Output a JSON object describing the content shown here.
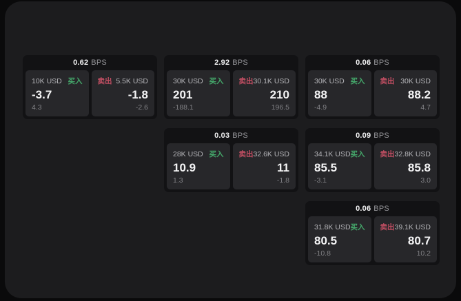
{
  "labels": {
    "buy": "买入",
    "sell": "卖出",
    "bps": "BPS"
  },
  "colors": {
    "page_bg": "#0a0a0b",
    "frame_bg": "#1c1c1e",
    "card_bg": "#121214",
    "panel_bg": "#27272a",
    "buy_accent": "#45a96b",
    "sell_accent": "#c04e62",
    "value_text": "#f4f4f5",
    "muted_text": "#818185"
  },
  "cards": [
    {
      "bps": "0.62",
      "buy": {
        "amount": "10K USD",
        "value": "-3.7",
        "sub": "4.3"
      },
      "sell": {
        "amount": "5.5K USD",
        "value": "-1.8",
        "sub": "-2.6"
      }
    },
    {
      "bps": "2.92",
      "buy": {
        "amount": "30K USD",
        "value": "201",
        "sub": "-188.1"
      },
      "sell": {
        "amount": "30.1K USD",
        "value": "210",
        "sub": "196.5"
      }
    },
    {
      "bps": "0.06",
      "buy": {
        "amount": "30K USD",
        "value": "88",
        "sub": "-4.9"
      },
      "sell": {
        "amount": "30K USD",
        "value": "88.2",
        "sub": "4.7"
      }
    },
    {
      "bps": "0.03",
      "buy": {
        "amount": "28K USD",
        "value": "10.9",
        "sub": "1.3"
      },
      "sell": {
        "amount": "32.6K USD",
        "value": "11",
        "sub": "-1.8"
      }
    },
    {
      "bps": "0.09",
      "buy": {
        "amount": "34.1K USD",
        "value": "85.5",
        "sub": "-3.1"
      },
      "sell": {
        "amount": "32.8K USD",
        "value": "85.8",
        "sub": "3.0"
      }
    },
    {
      "bps": "0.06",
      "buy": {
        "amount": "31.8K USD",
        "value": "80.5",
        "sub": "-10.8"
      },
      "sell": {
        "amount": "39.1K USD",
        "value": "80.7",
        "sub": "10.2"
      }
    }
  ]
}
